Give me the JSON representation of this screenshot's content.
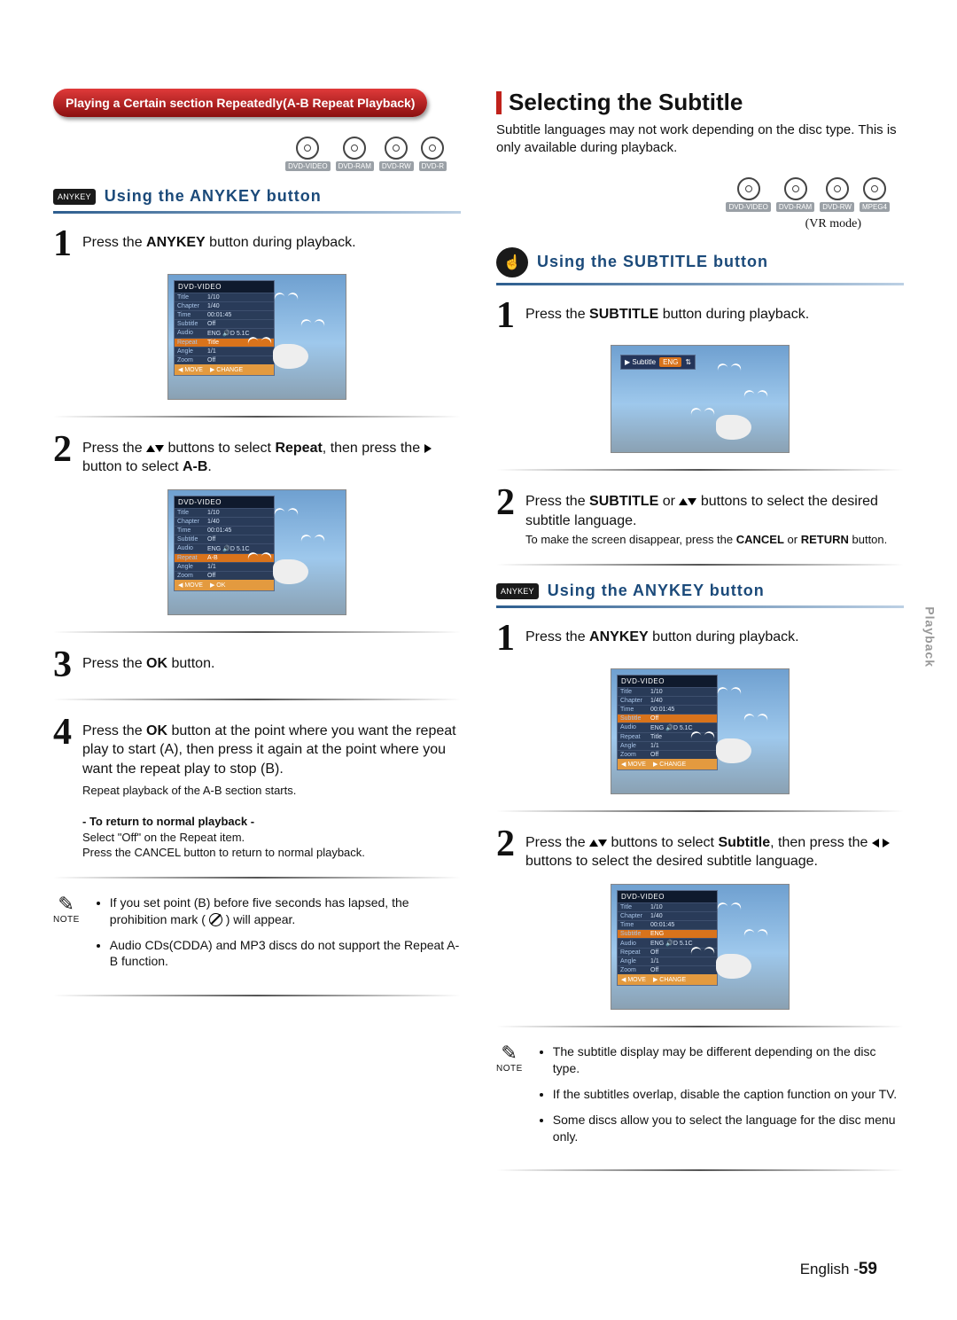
{
  "left": {
    "pill": "Playing a Certain section Repeatedly(A-B Repeat Playback)",
    "discs": [
      "DVD-VIDEO",
      "DVD-RAM",
      "DVD-RW",
      "DVD-R"
    ],
    "anykey_badge": "ANYKEY",
    "anykey_title": "Using the ANYKEY button",
    "step1a": "Press the ",
    "step1b": "ANYKEY",
    "step1c": " button during playback.",
    "step2a": "Press the ",
    "step2b": " buttons to select ",
    "step2c": "Repeat",
    "step2d": ", then press the ",
    "step2e": " button to select ",
    "step2f": "A-B",
    "step2g": ".",
    "step3a": "Press the ",
    "step3b": "OK",
    "step3c": " button.",
    "step4a": "Press the ",
    "step4b": "OK",
    "step4c": " button at the point where you want the repeat play to start (A), then press it again at the point where you want the repeat play to stop (B).",
    "step4small": "Repeat playback of the A-B section starts.",
    "returnHead": "- To return to normal playback -",
    "return1": "Select \"Off\" on the Repeat item.",
    "return2": "Press the CANCEL button to return to normal playback.",
    "notes": [
      "If you set point (B) before five seconds has lapsed, the prohibition mark (  ) will appear.",
      "Audio CDs(CDDA) and MP3 discs do not support the Repeat A-B function."
    ],
    "panel1": {
      "hdr": "DVD-VIDEO",
      "rows": [
        [
          "Title",
          "1/10"
        ],
        [
          "Chapter",
          "1/40"
        ],
        [
          "Time",
          "00:01:45"
        ],
        [
          "Subtitle",
          "Off"
        ],
        [
          "Audio",
          "ENG 🔊D 5.1C"
        ],
        [
          "Repeat",
          "Title"
        ],
        [
          "Angle",
          "1/1"
        ],
        [
          "Zoom",
          "Off"
        ]
      ],
      "hl": 5,
      "ftr": [
        "◀ MOVE",
        "▶ CHANGE"
      ]
    },
    "panel2": {
      "hdr": "DVD-VIDEO",
      "rows": [
        [
          "Title",
          "1/10"
        ],
        [
          "Chapter",
          "1/40"
        ],
        [
          "Time",
          "00:01:45"
        ],
        [
          "Subtitle",
          "Off"
        ],
        [
          "Audio",
          "ENG 🔊D 5.1C"
        ],
        [
          "Repeat",
          "A-B"
        ],
        [
          "Angle",
          "1/1"
        ],
        [
          "Zoom",
          "Off"
        ]
      ],
      "hl": 5,
      "ftr": [
        "◀ MOVE",
        "▶ OK"
      ]
    }
  },
  "right": {
    "h2": "Selecting the Subtitle",
    "intro": "Subtitle languages may not work depending on the disc type. This is only available during playback.",
    "discs": [
      "DVD-VIDEO",
      "DVD-RAM",
      "DVD-RW",
      "MPEG4"
    ],
    "vrmode": "(VR mode)",
    "subBadge": "☝",
    "subTitle": "Using the SUBTITLE button",
    "s1a": "Press the ",
    "s1b": "SUBTITLE",
    "s1c": " button during playback.",
    "s2a": "Press the ",
    "s2b": "SUBTITLE",
    "s2c": " or ",
    "s2d": " buttons to select the desired subtitle language.",
    "s2small1": "To make the screen disappear, press the ",
    "s2small2": "CANCEL",
    "s2small3": " or ",
    "s2small4": "RETURN",
    "s2small5": " button.",
    "anykey_badge": "ANYKEY",
    "anykey_title": "Using the ANYKEY button",
    "a1a": "Press the ",
    "a1b": "ANYKEY",
    "a1c": " button during playback.",
    "a2a": "Press the ",
    "a2b": " buttons to select ",
    "a2c": "Subtitle",
    "a2d": ", then press the ",
    "a2e": " buttons to select the desired subtitle language.",
    "notes": [
      "The subtitle display may be different depending on the disc type.",
      "If the subtitles overlap, disable the caption function on your TV.",
      "Some discs allow you to select the language for the disc menu only."
    ],
    "subchip": {
      "lbl": "Subtitle",
      "val": "ENG",
      "arrow": "⇅"
    },
    "panelA": {
      "hdr": "DVD-VIDEO",
      "rows": [
        [
          "Title",
          "1/10"
        ],
        [
          "Chapter",
          "1/40"
        ],
        [
          "Time",
          "00:01:45"
        ],
        [
          "Subtitle",
          "Off"
        ],
        [
          "Audio",
          "ENG 🔊D 5.1C"
        ],
        [
          "Repeat",
          "Title"
        ],
        [
          "Angle",
          "1/1"
        ],
        [
          "Zoom",
          "Off"
        ]
      ],
      "hl": 3,
      "ftr": [
        "◀ MOVE",
        "▶ CHANGE"
      ]
    },
    "panelB": {
      "hdr": "DVD-VIDEO",
      "rows": [
        [
          "Title",
          "1/10"
        ],
        [
          "Chapter",
          "1/40"
        ],
        [
          "Time",
          "00:01:45"
        ],
        [
          "Subtitle",
          "ENG"
        ],
        [
          "Audio",
          "ENG 🔊D 5.1C"
        ],
        [
          "Repeat",
          "Off"
        ],
        [
          "Angle",
          "1/1"
        ],
        [
          "Zoom",
          "Off"
        ]
      ],
      "hl": 3,
      "ftr": [
        "◀ MOVE",
        "▶ CHANGE"
      ]
    }
  },
  "note_label": "NOTE",
  "tab": "Playback",
  "footer_a": "English -",
  "footer_b": "59"
}
